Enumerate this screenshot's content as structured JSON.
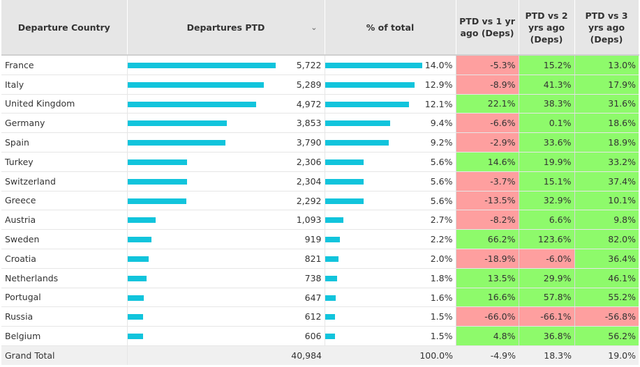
{
  "headers": {
    "country": "Departure Country",
    "departures": "Departures PTD",
    "share": "% of total",
    "vs1": "PTD vs 1 yr ago (Deps)",
    "vs2": "PTD vs 2 yrs ago (Deps)",
    "vs3": "PTD vs 3 yrs ago (Deps)"
  },
  "colors": {
    "bar": "#11c4dc",
    "negative": "#fe9f9f",
    "positive": "#8efa6b"
  },
  "max_departures": 5722,
  "max_share": 14.0,
  "rows": [
    {
      "country": "France",
      "departures": 5722,
      "departures_label": "5,722",
      "share": 14.0,
      "share_label": "14.0%",
      "vs1": -5.3,
      "vs1_label": "-5.3%",
      "vs2": 15.2,
      "vs2_label": "15.2%",
      "vs3": 13.0,
      "vs3_label": "13.0%"
    },
    {
      "country": "Italy",
      "departures": 5289,
      "departures_label": "5,289",
      "share": 12.9,
      "share_label": "12.9%",
      "vs1": -8.9,
      "vs1_label": "-8.9%",
      "vs2": 41.3,
      "vs2_label": "41.3%",
      "vs3": 17.9,
      "vs3_label": "17.9%"
    },
    {
      "country": "United Kingdom",
      "departures": 4972,
      "departures_label": "4,972",
      "share": 12.1,
      "share_label": "12.1%",
      "vs1": 22.1,
      "vs1_label": "22.1%",
      "vs2": 38.3,
      "vs2_label": "38.3%",
      "vs3": 31.6,
      "vs3_label": "31.6%"
    },
    {
      "country": "Germany",
      "departures": 3853,
      "departures_label": "3,853",
      "share": 9.4,
      "share_label": "9.4%",
      "vs1": -6.6,
      "vs1_label": "-6.6%",
      "vs2": 0.1,
      "vs2_label": "0.1%",
      "vs3": 18.6,
      "vs3_label": "18.6%"
    },
    {
      "country": "Spain",
      "departures": 3790,
      "departures_label": "3,790",
      "share": 9.2,
      "share_label": "9.2%",
      "vs1": -2.9,
      "vs1_label": "-2.9%",
      "vs2": 33.6,
      "vs2_label": "33.6%",
      "vs3": 18.9,
      "vs3_label": "18.9%"
    },
    {
      "country": "Turkey",
      "departures": 2306,
      "departures_label": "2,306",
      "share": 5.6,
      "share_label": "5.6%",
      "vs1": 14.6,
      "vs1_label": "14.6%",
      "vs2": 19.9,
      "vs2_label": "19.9%",
      "vs3": 33.2,
      "vs3_label": "33.2%"
    },
    {
      "country": "Switzerland",
      "departures": 2304,
      "departures_label": "2,304",
      "share": 5.6,
      "share_label": "5.6%",
      "vs1": -3.7,
      "vs1_label": "-3.7%",
      "vs2": 15.1,
      "vs2_label": "15.1%",
      "vs3": 37.4,
      "vs3_label": "37.4%"
    },
    {
      "country": "Greece",
      "departures": 2292,
      "departures_label": "2,292",
      "share": 5.6,
      "share_label": "5.6%",
      "vs1": -13.5,
      "vs1_label": "-13.5%",
      "vs2": 32.9,
      "vs2_label": "32.9%",
      "vs3": 10.1,
      "vs3_label": "10.1%"
    },
    {
      "country": "Austria",
      "departures": 1093,
      "departures_label": "1,093",
      "share": 2.7,
      "share_label": "2.7%",
      "vs1": -8.2,
      "vs1_label": "-8.2%",
      "vs2": 6.6,
      "vs2_label": "6.6%",
      "vs3": 9.8,
      "vs3_label": "9.8%"
    },
    {
      "country": "Sweden",
      "departures": 919,
      "departures_label": "919",
      "share": 2.2,
      "share_label": "2.2%",
      "vs1": 66.2,
      "vs1_label": "66.2%",
      "vs2": 123.6,
      "vs2_label": "123.6%",
      "vs3": 82.0,
      "vs3_label": "82.0%"
    },
    {
      "country": "Croatia",
      "departures": 821,
      "departures_label": "821",
      "share": 2.0,
      "share_label": "2.0%",
      "vs1": -18.9,
      "vs1_label": "-18.9%",
      "vs2": -6.0,
      "vs2_label": "-6.0%",
      "vs3": 36.4,
      "vs3_label": "36.4%"
    },
    {
      "country": "Netherlands",
      "departures": 738,
      "departures_label": "738",
      "share": 1.8,
      "share_label": "1.8%",
      "vs1": 13.5,
      "vs1_label": "13.5%",
      "vs2": 29.9,
      "vs2_label": "29.9%",
      "vs3": 46.1,
      "vs3_label": "46.1%"
    },
    {
      "country": "Portugal",
      "departures": 647,
      "departures_label": "647",
      "share": 1.6,
      "share_label": "1.6%",
      "vs1": 16.6,
      "vs1_label": "16.6%",
      "vs2": 57.8,
      "vs2_label": "57.8%",
      "vs3": 55.2,
      "vs3_label": "55.2%"
    },
    {
      "country": "Russia",
      "departures": 612,
      "departures_label": "612",
      "share": 1.5,
      "share_label": "1.5%",
      "vs1": -66.0,
      "vs1_label": "-66.0%",
      "vs2": -66.1,
      "vs2_label": "-66.1%",
      "vs3": -56.8,
      "vs3_label": "-56.8%"
    },
    {
      "country": "Belgium",
      "departures": 606,
      "departures_label": "606",
      "share": 1.5,
      "share_label": "1.5%",
      "vs1": 4.8,
      "vs1_label": "4.8%",
      "vs2": 36.8,
      "vs2_label": "36.8%",
      "vs3": 56.2,
      "vs3_label": "56.2%"
    }
  ],
  "total": {
    "label": "Grand Total",
    "departures_label": "40,984",
    "share_label": "100.0%",
    "vs1_label": "-4.9%",
    "vs2_label": "18.3%",
    "vs3_label": "19.0%"
  }
}
